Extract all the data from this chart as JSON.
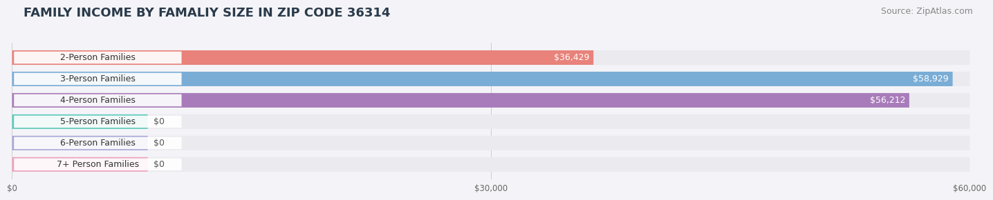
{
  "title": "FAMILY INCOME BY FAMALIY SIZE IN ZIP CODE 36314",
  "source": "Source: ZipAtlas.com",
  "categories": [
    "2-Person Families",
    "3-Person Families",
    "4-Person Families",
    "5-Person Families",
    "6-Person Families",
    "7+ Person Families"
  ],
  "values": [
    36429,
    58929,
    56212,
    0,
    0,
    0
  ],
  "bar_colors": [
    "#e8827a",
    "#7aadd6",
    "#a87cba",
    "#5ec8ba",
    "#a8a8d8",
    "#f0a0ba"
  ],
  "value_labels": [
    "$36,429",
    "$58,929",
    "$56,212",
    "$0",
    "$0",
    "$0"
  ],
  "xlim": [
    0,
    60000
  ],
  "xticks": [
    0,
    30000,
    60000
  ],
  "xticklabels": [
    "$0",
    "$30,000",
    "$60,000"
  ],
  "background_color": "#f4f4f8",
  "bar_bg_color": "#eaeaef",
  "title_fontsize": 13,
  "source_fontsize": 9,
  "label_fontsize": 9,
  "value_fontsize": 9,
  "zero_stub_value": 8500
}
